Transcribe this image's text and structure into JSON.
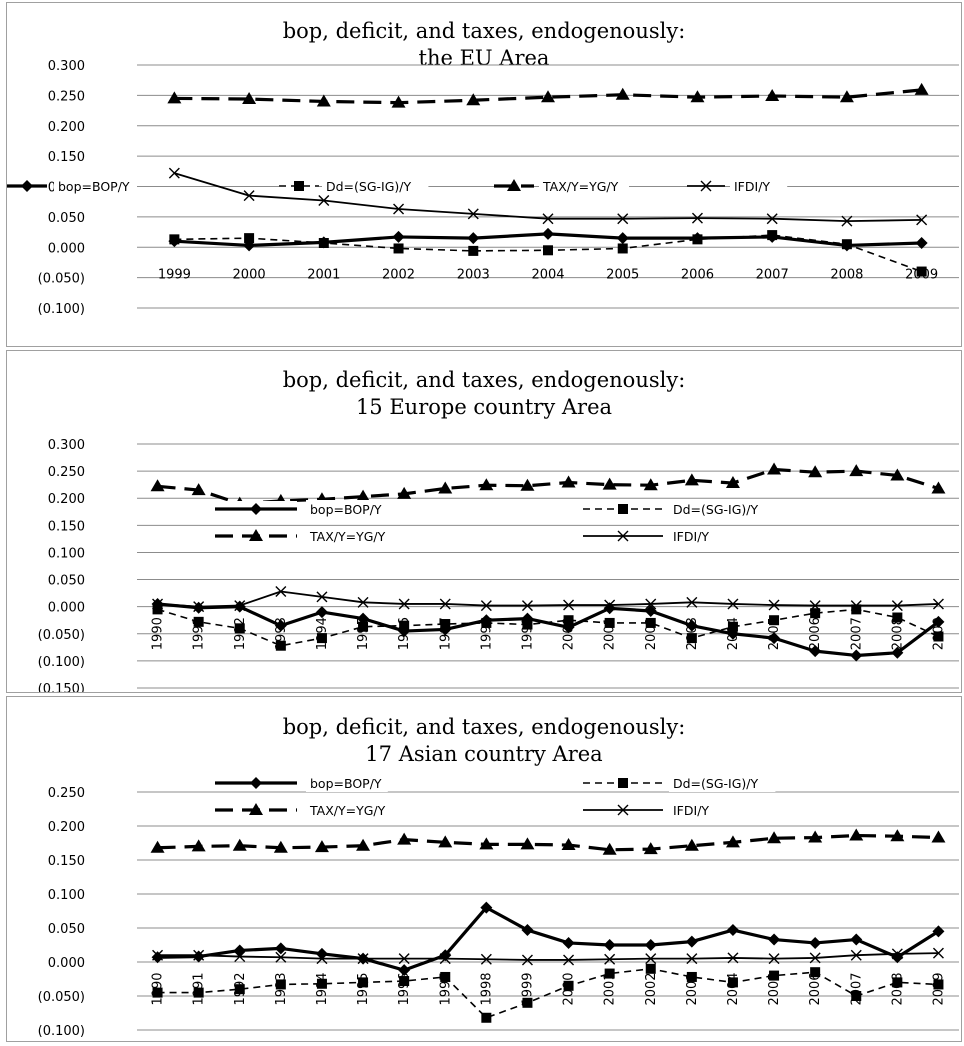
{
  "chart_data": [
    {
      "type": "line",
      "title": [
        "bop, deficit, and taxes, endogenously:",
        "the EU Area"
      ],
      "xlabel": "",
      "ylabel": "",
      "ylim": [
        -0.1,
        0.3
      ],
      "yticks": [
        "(0.100)",
        "(0.050)",
        "0.000",
        "0.050",
        "0.100",
        "0.150",
        "0.200",
        "0.250",
        "0.300"
      ],
      "x": [
        "1999",
        "2000",
        "2001",
        "2002",
        "2003",
        "2004",
        "2005",
        "2006",
        "2007",
        "2008",
        "2009"
      ],
      "legend_position": "middle",
      "series": [
        {
          "name": "bop=BOP/Y",
          "values": [
            0.01,
            0.003,
            0.008,
            0.017,
            0.015,
            0.022,
            0.015,
            0.015,
            0.017,
            0.003,
            0.007
          ]
        },
        {
          "name": "Dd=(SG-IG)/Y",
          "values": [
            0.013,
            0.015,
            0.007,
            -0.002,
            -0.006,
            -0.005,
            -0.002,
            0.013,
            0.02,
            0.005,
            -0.04
          ]
        },
        {
          "name": "TAX/Y=YG/Y",
          "values": [
            0.245,
            0.244,
            0.24,
            0.238,
            0.242,
            0.247,
            0.251,
            0.247,
            0.249,
            0.247,
            0.259
          ]
        },
        {
          "name": "IFDI/Y",
          "values": [
            0.122,
            0.085,
            0.077,
            0.063,
            0.055,
            0.047,
            0.047,
            0.048,
            0.047,
            0.043,
            0.045
          ]
        }
      ]
    },
    {
      "type": "line",
      "title": [
        "bop, deficit, and taxes, endogenously:",
        "15 Europe country Area"
      ],
      "xlabel": "",
      "ylabel": "",
      "ylim": [
        -0.15,
        0.3
      ],
      "yticks": [
        "(0.150)",
        "(0.100)",
        "(0.050)",
        "0.000",
        "0.050",
        "0.100",
        "0.150",
        "0.200",
        "0.250",
        "0.300"
      ],
      "x": [
        "1990",
        "1991",
        "1992",
        "1993",
        "1994",
        "1995",
        "1996",
        "1997",
        "1998",
        "1999",
        "2000",
        "2001",
        "2002",
        "2003",
        "2004",
        "2005",
        "2006",
        "2007",
        "2008",
        "2009"
      ],
      "legend_position": "middle",
      "series": [
        {
          "name": "bop=BOP/Y",
          "values": [
            0.005,
            -0.002,
            0.0,
            -0.035,
            -0.01,
            -0.022,
            -0.045,
            -0.042,
            -0.025,
            -0.022,
            -0.038,
            -0.003,
            -0.008,
            -0.035,
            -0.05,
            -0.058,
            -0.082,
            -0.09,
            -0.085,
            -0.028
          ]
        },
        {
          "name": "Dd=(SG-IG)/Y",
          "values": [
            -0.005,
            -0.028,
            -0.04,
            -0.072,
            -0.058,
            -0.037,
            -0.035,
            -0.032,
            -0.03,
            -0.033,
            -0.025,
            -0.03,
            -0.03,
            -0.058,
            -0.037,
            -0.025,
            -0.012,
            -0.005,
            -0.02,
            -0.055
          ]
        },
        {
          "name": "TAX/Y=YG/Y",
          "values": [
            0.222,
            0.215,
            0.19,
            0.195,
            0.198,
            0.203,
            0.208,
            0.218,
            0.224,
            0.223,
            0.229,
            0.225,
            0.224,
            0.233,
            0.228,
            0.253,
            0.248,
            0.25,
            0.242,
            0.218
          ]
        },
        {
          "name": "IFDI/Y",
          "values": [
            0.005,
            0.0,
            0.002,
            0.028,
            0.018,
            0.008,
            0.005,
            0.005,
            0.002,
            0.002,
            0.003,
            0.003,
            0.005,
            0.008,
            0.005,
            0.003,
            0.002,
            0.002,
            0.002,
            0.005
          ]
        }
      ]
    },
    {
      "type": "line",
      "title": [
        "bop, deficit, and taxes, endogenously:",
        "17 Asian country Area"
      ],
      "xlabel": "",
      "ylabel": "",
      "ylim": [
        -0.1,
        0.25
      ],
      "yticks": [
        "(0.100)",
        "(0.050)",
        "0.000",
        "0.050",
        "0.100",
        "0.150",
        "0.200",
        "0.250"
      ],
      "x": [
        "1990",
        "1991",
        "1992",
        "1993",
        "1994",
        "1995",
        "1996",
        "1997",
        "1998",
        "1999",
        "2000",
        "2001",
        "2002",
        "2003",
        "2004",
        "2005",
        "2006",
        "2007",
        "2008",
        "2009"
      ],
      "legend_position": "top",
      "series": [
        {
          "name": "bop=BOP/Y",
          "values": [
            0.007,
            0.008,
            0.017,
            0.02,
            0.012,
            0.005,
            -0.012,
            0.01,
            0.08,
            0.047,
            0.028,
            0.025,
            0.025,
            0.03,
            0.047,
            0.033,
            0.028,
            0.033,
            0.007,
            0.045
          ]
        },
        {
          "name": "Dd=(SG-IG)/Y",
          "values": [
            -0.045,
            -0.045,
            -0.04,
            -0.033,
            -0.032,
            -0.03,
            -0.028,
            -0.022,
            -0.082,
            -0.06,
            -0.035,
            -0.017,
            -0.01,
            -0.022,
            -0.03,
            -0.02,
            -0.015,
            -0.05,
            -0.03,
            -0.033
          ]
        },
        {
          "name": "TAX/Y=YG/Y",
          "values": [
            0.168,
            0.17,
            0.171,
            0.168,
            0.169,
            0.171,
            0.18,
            0.176,
            0.173,
            0.173,
            0.172,
            0.165,
            0.166,
            0.171,
            0.176,
            0.182,
            0.183,
            0.186,
            0.185,
            0.183
          ]
        },
        {
          "name": "IFDI/Y",
          "values": [
            0.01,
            0.01,
            0.008,
            0.007,
            0.005,
            0.005,
            0.005,
            0.005,
            0.004,
            0.003,
            0.003,
            0.004,
            0.005,
            0.005,
            0.006,
            0.005,
            0.006,
            0.01,
            0.012,
            0.013
          ]
        }
      ]
    }
  ]
}
